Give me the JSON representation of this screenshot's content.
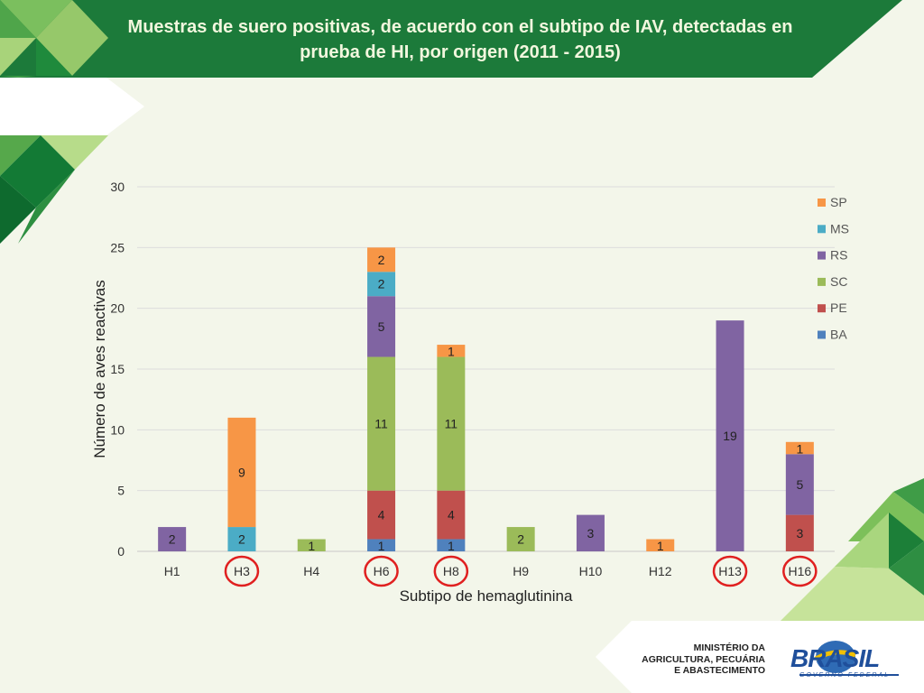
{
  "title": "Muestras de suero positivas, de acuerdo con el subtipo de IAV, detectadas en prueba de HI, por origen (2011 - 2015)",
  "footer": {
    "ministry_lines": [
      "MINISTÉRIO DA",
      "AGRICULTURA, PECUÁRIA",
      "E ABASTECIMENTO"
    ],
    "brand": "BRASIL",
    "brand_sub": "GOVERNO FEDERAL"
  },
  "chart_data": {
    "type": "bar",
    "stacked": true,
    "xlabel": "Subtipo de hemaglutinina",
    "ylabel": "Número de aves reactivas",
    "ylim": [
      0,
      30
    ],
    "yticks": [
      0,
      5,
      10,
      15,
      20,
      25,
      30
    ],
    "grid": true,
    "legend_position": "right",
    "categories": [
      "H1",
      "H3",
      "H4",
      "H6",
      "H8",
      "H9",
      "H10",
      "H12",
      "H13",
      "H16"
    ],
    "highlighted": [
      "H3",
      "H6",
      "H8",
      "H13",
      "H16"
    ],
    "series": [
      {
        "name": "BA",
        "color": "#4f81bd",
        "values": [
          0,
          0,
          0,
          1,
          1,
          0,
          0,
          0,
          0,
          0
        ]
      },
      {
        "name": "PE",
        "color": "#c0504d",
        "values": [
          0,
          0,
          0,
          4,
          4,
          0,
          0,
          0,
          0,
          3
        ]
      },
      {
        "name": "SC",
        "color": "#9bbb59",
        "values": [
          0,
          0,
          1,
          11,
          11,
          2,
          0,
          0,
          0,
          0
        ]
      },
      {
        "name": "RS",
        "color": "#8064a2",
        "values": [
          2,
          0,
          0,
          5,
          0,
          0,
          3,
          0,
          19,
          5
        ]
      },
      {
        "name": "MS",
        "color": "#4bacc6",
        "values": [
          0,
          2,
          0,
          2,
          0,
          0,
          0,
          0,
          0,
          0
        ]
      },
      {
        "name": "SP",
        "color": "#f79646",
        "values": [
          0,
          9,
          0,
          2,
          1,
          0,
          0,
          1,
          0,
          1
        ]
      }
    ]
  }
}
